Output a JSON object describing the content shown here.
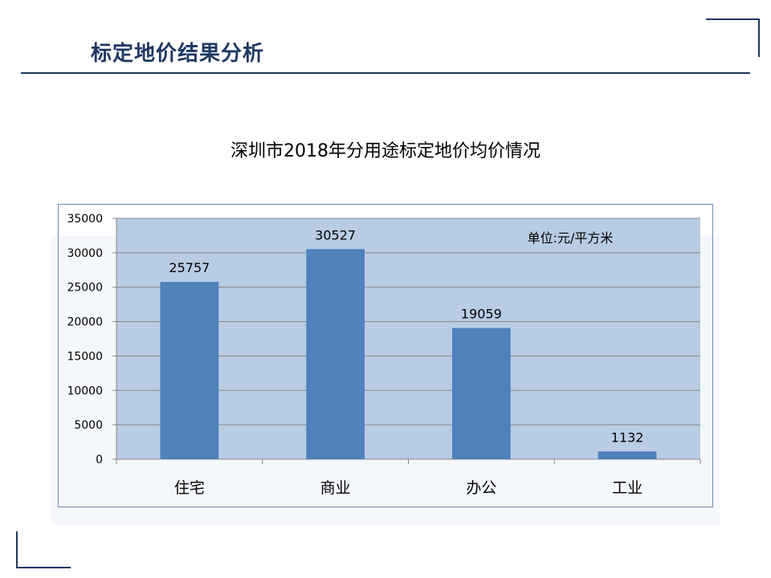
{
  "slide": {
    "title": "标定地价结果分析"
  },
  "chart_data": {
    "type": "bar",
    "title": "深圳市2018年分用途标定地价均价情况",
    "unit_note": "单位:元/平方米",
    "categories": [
      "住宅",
      "商业",
      "办公",
      "工业"
    ],
    "values": [
      25757,
      30527,
      19059,
      1132
    ],
    "data_labels": [
      "25757",
      "30527",
      "19059",
      "1132"
    ],
    "ylim": [
      0,
      35000
    ],
    "yticks": [
      "0",
      "5000",
      "10000",
      "15000",
      "20000",
      "25000",
      "30000",
      "35000"
    ],
    "ytick_values": [
      0,
      5000,
      10000,
      15000,
      20000,
      25000,
      30000,
      35000
    ],
    "grid": true,
    "legend": "none",
    "colors": {
      "bar": "#4f81bd",
      "plot_area": "#b8cce4",
      "gridline": "#868686",
      "text": "#000000",
      "title_accent": "#1f3864"
    }
  }
}
